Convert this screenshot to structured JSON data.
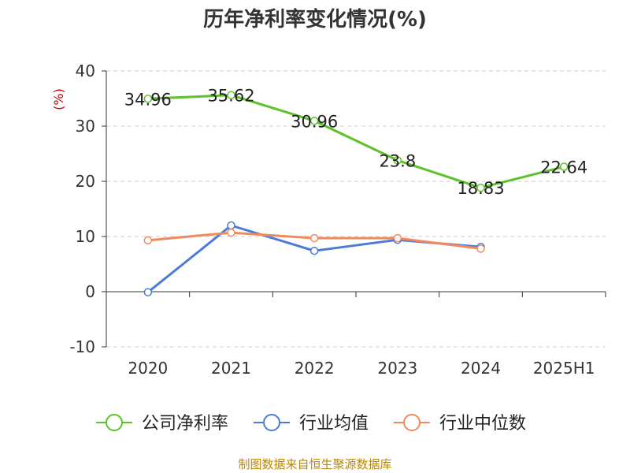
{
  "chart_data": {
    "type": "line",
    "title": "历年净利率变化情况(%)",
    "ylabel": "(%)",
    "categories": [
      "2020",
      "2021",
      "2022",
      "2023",
      "2024",
      "2025H1"
    ],
    "ylim": [
      -10,
      40
    ],
    "yticks": [
      40,
      30,
      20,
      10,
      0,
      -10
    ],
    "grid": true,
    "legend_position": "bottom",
    "series": [
      {
        "name": "公司净利率",
        "color": "#5cc22a",
        "values": [
          34.96,
          35.62,
          30.96,
          23.8,
          18.83,
          22.64
        ],
        "labels": [
          "34.96",
          "35.62",
          "30.96",
          "23.8",
          "18.83",
          "22.64"
        ]
      },
      {
        "name": "行业均值",
        "color": "#4a7bd8",
        "values": [
          -0.1,
          12.0,
          7.4,
          9.4,
          8.1,
          null
        ]
      },
      {
        "name": "行业中位数",
        "color": "#f08a5c",
        "values": [
          9.3,
          10.7,
          9.7,
          9.7,
          7.8,
          null
        ]
      }
    ]
  },
  "source": "制图数据来自恒生聚源数据库"
}
